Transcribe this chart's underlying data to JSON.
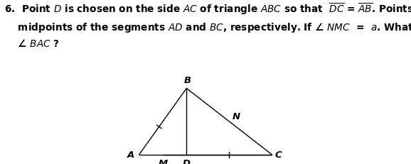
{
  "A": [
    0.0,
    0.0
  ],
  "B": [
    2.5,
    3.5
  ],
  "C": [
    7.0,
    0.0
  ],
  "D": [
    2.5,
    0.0
  ],
  "M": [
    1.25,
    0.0
  ],
  "N": [
    4.75,
    1.75
  ],
  "label_A": "A",
  "label_B": "B",
  "label_C": "C",
  "label_D": "D",
  "label_M": "M",
  "label_N": "N",
  "line_color": "#000000",
  "text_color": "#000000",
  "bg_color": "#ffffff",
  "fontsize_labels": 9.5,
  "lw": 1.0,
  "tick_size": 0.15,
  "xlim": [
    -0.8,
    7.8
  ],
  "ylim": [
    -0.5,
    4.2
  ]
}
